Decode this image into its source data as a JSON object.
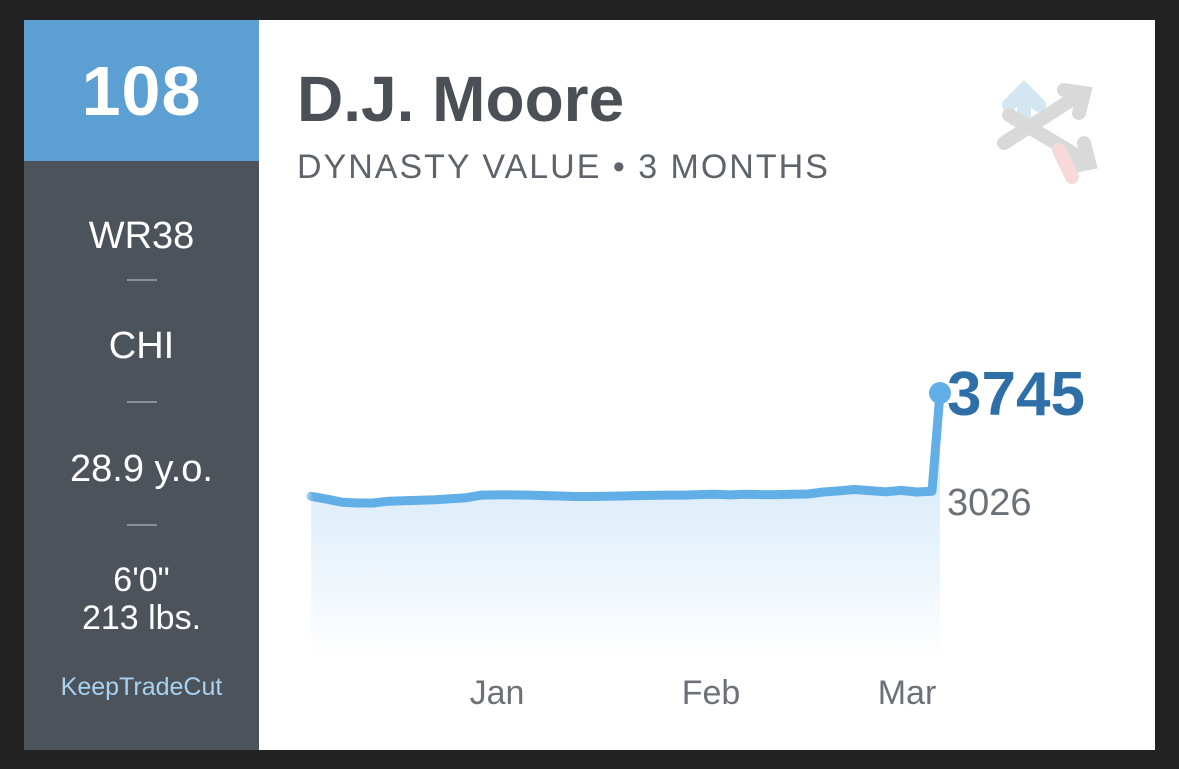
{
  "card": {
    "rank": "108",
    "position_rank": "WR38",
    "team": "CHI",
    "age": "28.9 y.o.",
    "height": "6'0\"",
    "weight": "213 lbs.",
    "brand": "KeepTradeCut",
    "player_name": "D.J. Moore",
    "subtitle": "DYNASTY VALUE • 3 MONTHS",
    "logo_icon": "trade-arrows-logo-icon"
  },
  "colors": {
    "sidebar": "#4d535b",
    "rank_box": "#5c9fd2",
    "line": "#62aee6",
    "current_value": "#2f6fa8",
    "previous_value": "#6c7178"
  },
  "chart_data": {
    "type": "area",
    "title": "",
    "xlabel": "",
    "ylabel": "",
    "x_ticks": [
      "Jan",
      "Feb",
      "Mar"
    ],
    "grid": false,
    "series": [
      {
        "values": [
          3010,
          2990,
          2968,
          2962,
          2962,
          2975,
          2978,
          2982,
          2985,
          2992,
          3000,
          3018,
          3020,
          3020,
          3018,
          3015,
          3012,
          3008,
          3008,
          3010,
          3012,
          3015,
          3016,
          3018,
          3018,
          3022,
          3024,
          3020,
          3024,
          3022,
          3022,
          3024,
          3026,
          3040,
          3048,
          3058,
          3050,
          3042,
          3052,
          3040,
          3045,
          3745
        ]
      }
    ],
    "current_value": 3745,
    "previous_value": 3026
  }
}
